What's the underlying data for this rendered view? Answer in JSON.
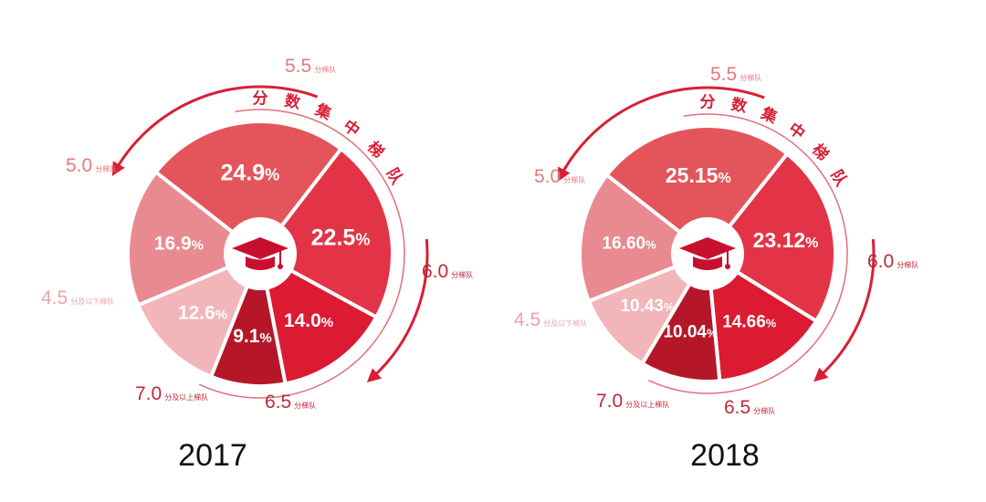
{
  "chart_data": [
    {
      "type": "pie",
      "year": "2017",
      "suffix": "%",
      "slices": [
        {
          "category": "5.5",
          "value": 24.9,
          "label": "24.9",
          "color": "#e4555b",
          "bold": true
        },
        {
          "category": "6.0",
          "value": 22.5,
          "label": "22.5",
          "color": "#e23446",
          "bold": true
        },
        {
          "category": "6.5",
          "value": 14.0,
          "label": "14.0",
          "color": "#dc1b33",
          "bold": false
        },
        {
          "category": "7.0",
          "value": 9.1,
          "label": "9.1",
          "color": "#b51729",
          "bold": false
        },
        {
          "category": "4.5",
          "value": 12.6,
          "label": "12.6",
          "color": "#f2b5b9",
          "bold": false
        },
        {
          "category": "5.0",
          "value": 16.9,
          "label": "16.9",
          "color": "#e98a90",
          "bold": false
        }
      ]
    },
    {
      "type": "pie",
      "year": "2018",
      "suffix": "%",
      "slices": [
        {
          "category": "5.5",
          "value": 25.15,
          "label": "25.15",
          "color": "#e4555b",
          "bold": true
        },
        {
          "category": "6.0",
          "value": 23.12,
          "label": "23.12",
          "color": "#e23446",
          "bold": true
        },
        {
          "category": "6.5",
          "value": 14.66,
          "label": "14.66",
          "color": "#dc1b33",
          "bold": false
        },
        {
          "category": "7.0",
          "value": 10.04,
          "label": "10.04",
          "color": "#b51729",
          "bold": false
        },
        {
          "category": "4.5",
          "value": 10.43,
          "label": "10.43",
          "color": "#f2b5b9",
          "bold": false
        },
        {
          "category": "5.0",
          "value": 16.6,
          "label": "16.60",
          "color": "#e98a90",
          "bold": false
        }
      ]
    }
  ],
  "arc_text": "分数集中梯队",
  "band_labels": {
    "5.5": {
      "num": "5.5",
      "unit": "分梯队"
    },
    "5.0": {
      "num": "5.0",
      "unit": "分梯队"
    },
    "4.5": {
      "num": "4.5",
      "unit": "分及以下梯队"
    },
    "6.0": {
      "num": "6.0",
      "unit": "分梯队"
    },
    "6.5": {
      "num": "6.5",
      "unit": "分梯队"
    },
    "7.0": {
      "num": "7.0",
      "unit": "分及以上梯队"
    }
  },
  "colors": {
    "arrow": "#d81f36",
    "ring": "#e0707a",
    "label_pale": "#f0a3a8",
    "label_light": "#e7787e",
    "label_dark": "#c0283a",
    "cap": "#c8102e",
    "center_circle": "#ffffff"
  },
  "icon": "graduation-cap-icon"
}
